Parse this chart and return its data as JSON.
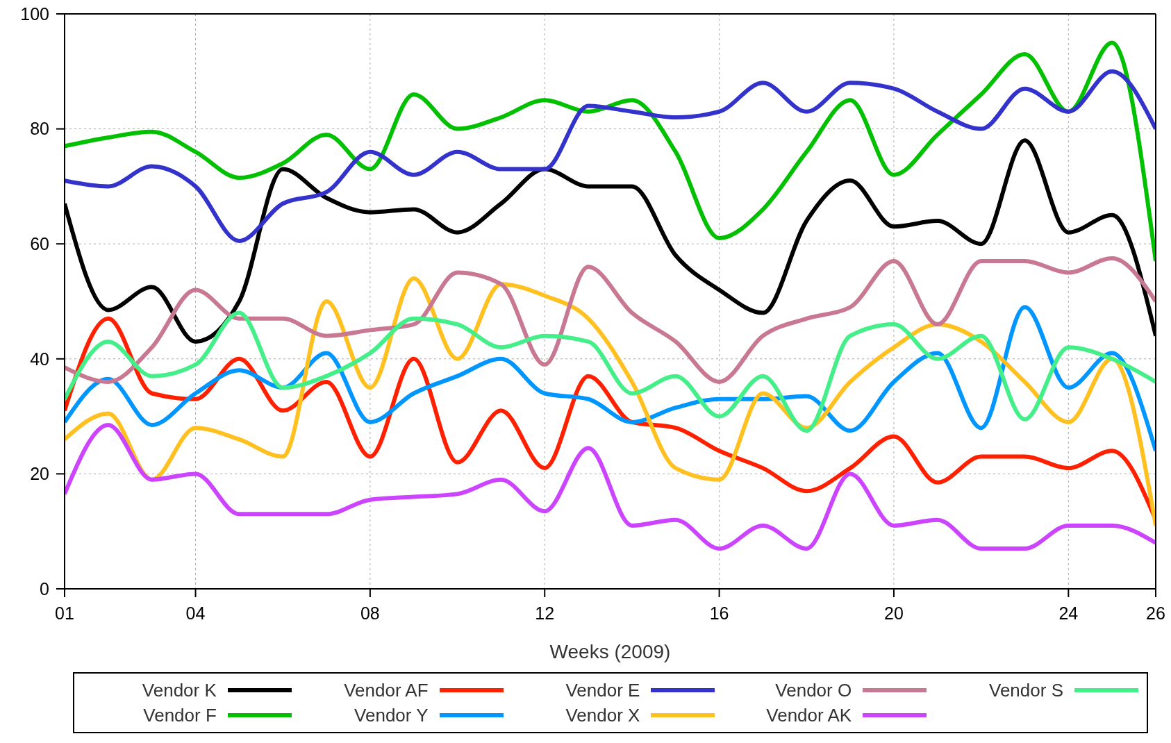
{
  "chart_data": {
    "type": "line",
    "xlabel": "Weeks (2009)",
    "x": [
      1,
      2,
      3,
      4,
      5,
      6,
      7,
      8,
      9,
      10,
      11,
      12,
      13,
      14,
      15,
      16,
      17,
      18,
      19,
      20,
      21,
      22,
      23,
      24,
      25,
      26
    ],
    "xlim": [
      1,
      26
    ],
    "xticks": [
      {
        "value": 1,
        "label": "01"
      },
      {
        "value": 4,
        "label": "04"
      },
      {
        "value": 8,
        "label": "08"
      },
      12,
      16,
      20,
      24,
      26
    ],
    "ylim": [
      0,
      100
    ],
    "yticks": [
      0,
      20,
      40,
      60,
      80,
      100
    ],
    "grid": true,
    "legend": "bottom",
    "line_style": "solid",
    "marker": "none",
    "series": [
      {
        "name": "Vendor K",
        "color": "#000000",
        "values": [
          67,
          48.5,
          52.5,
          43,
          50,
          73,
          68,
          65.5,
          66,
          62,
          67,
          73,
          70,
          70,
          58,
          52,
          48,
          64,
          71,
          63,
          64,
          60,
          78,
          62,
          65,
          44
        ]
      },
      {
        "name": "Vendor F",
        "color": "#00c000",
        "values": [
          77,
          78.5,
          79.5,
          76,
          71.5,
          74,
          79,
          73,
          86,
          80,
          82,
          85,
          83,
          85,
          76,
          61,
          66,
          76,
          85,
          72,
          79,
          86,
          93,
          83,
          95,
          57
        ]
      },
      {
        "name": "Vendor AF",
        "color": "#ff2000",
        "values": [
          31,
          47,
          34,
          33,
          40,
          31,
          36,
          23,
          40,
          22,
          31,
          21,
          37,
          29,
          28,
          24,
          21,
          17,
          21,
          26.5,
          18.5,
          23,
          23,
          21,
          24,
          12
        ]
      },
      {
        "name": "Vendor Y",
        "color": "#0096ff",
        "values": [
          29,
          36.5,
          28.5,
          34,
          38,
          35,
          41,
          29,
          34,
          37,
          40,
          34,
          33,
          29,
          31.5,
          33,
          33,
          33.5,
          27.5,
          36,
          41,
          28,
          49,
          35,
          41,
          24
        ]
      },
      {
        "name": "Vendor E",
        "color": "#3333cc",
        "values": [
          71,
          70,
          73.5,
          70,
          60.5,
          67,
          69,
          76,
          72,
          76,
          73,
          73,
          84,
          83,
          82,
          83,
          88,
          83,
          88,
          87,
          83,
          80,
          87,
          83,
          90,
          80
        ]
      },
      {
        "name": "Vendor X",
        "color": "#ffc020",
        "values": [
          26,
          30.5,
          19,
          28,
          26,
          23,
          50,
          35,
          54,
          40,
          53,
          51,
          47,
          36,
          21,
          19,
          34,
          28,
          36,
          42,
          46,
          43,
          36,
          29,
          40,
          11
        ]
      },
      {
        "name": "Vendor O",
        "color": "#c87890",
        "values": [
          38.5,
          36,
          42,
          52,
          47,
          47,
          44,
          45,
          46,
          55,
          53,
          39,
          56,
          48,
          43,
          36,
          44,
          47,
          49,
          57,
          46,
          57,
          57,
          55,
          57.5,
          50
        ]
      },
      {
        "name": "Vendor AK",
        "color": "#cc44ff",
        "values": [
          16.5,
          28.5,
          19,
          20,
          13,
          13,
          13,
          15.5,
          16,
          16.5,
          19,
          13.5,
          24.5,
          11,
          12,
          7,
          11,
          7,
          20,
          11,
          12,
          7,
          7,
          11,
          11,
          8
        ]
      },
      {
        "name": "Vendor S",
        "color": "#44ee88",
        "values": [
          33,
          43,
          37,
          39,
          48,
          35,
          37,
          41,
          47,
          46,
          42,
          44,
          43,
          34,
          37,
          30,
          37,
          27.5,
          44,
          46,
          40,
          44,
          29.5,
          42,
          40,
          36
        ]
      }
    ]
  }
}
